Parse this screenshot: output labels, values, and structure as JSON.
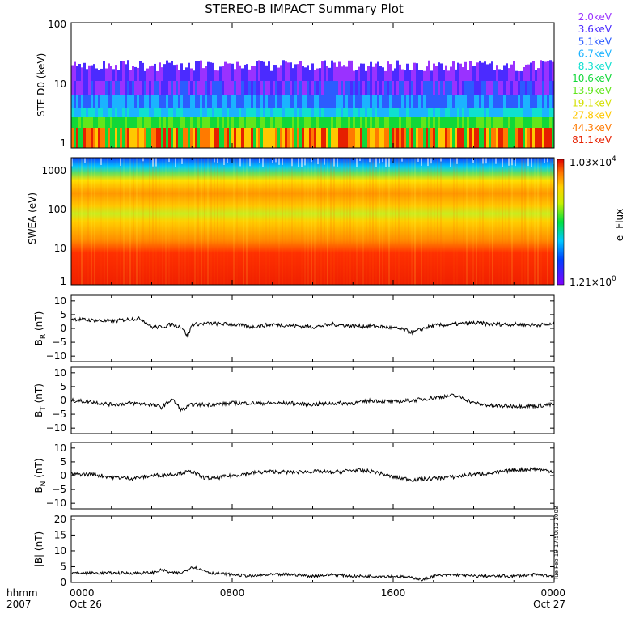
{
  "title": "STEREO-B IMPACT Summary Plot",
  "footer": {
    "row_label_top": "hhmm",
    "row_label_bottom": "2007",
    "ticks": [
      {
        "time": "0000",
        "date": "Oct 26",
        "hour": 0
      },
      {
        "time": "0800",
        "date": "",
        "hour": 8
      },
      {
        "time": "1600",
        "date": "",
        "hour": 16
      },
      {
        "time": "0000",
        "date": "Oct 27",
        "hour": 24
      }
    ],
    "timestamp": "Tue Feb 19 17:50:12 2008"
  },
  "colors": {
    "trace": "#000000",
    "ste_channels": [
      "#9a32ff",
      "#4b2bff",
      "#2c5cff",
      "#1bb3ff",
      "#0fe0d0",
      "#11d838",
      "#62e61b",
      "#d4e000",
      "#ffc800",
      "#ff7a00",
      "#e62000"
    ]
  },
  "chart_data": [
    {
      "id": "ste",
      "type": "heatmap",
      "ylabel": "STE D0 (keV)",
      "yscale": "log",
      "ylim": [
        1,
        100
      ],
      "yticks": [
        "1",
        "10",
        "100"
      ],
      "channels": [
        "2.0keV",
        "3.6keV",
        "5.1keV",
        "6.7keV",
        "8.3keV",
        "10.6keV",
        "13.9keV",
        "19.1keV",
        "27.8keV",
        "44.3keV",
        "81.1keV"
      ]
    },
    {
      "id": "swea",
      "type": "heatmap",
      "ylabel": "SWEA (eV)",
      "yscale": "log",
      "ylim": [
        1,
        2000
      ],
      "yticks": [
        "1",
        "10",
        "100",
        "1000"
      ],
      "colorbar": {
        "label": "e- Flux",
        "max": "1.03×10",
        "max_exp": "4",
        "min": "1.21×10",
        "min_exp": "0"
      }
    },
    {
      "id": "br",
      "type": "line",
      "ylabel": "B",
      "sub": "R",
      "unit": "(nT)",
      "ylim": [
        -12,
        12
      ],
      "yticks": [
        "10",
        "5",
        "0",
        "−5",
        "−10"
      ],
      "x": [
        0,
        1,
        2,
        3,
        3.5,
        4,
        4.5,
        5,
        5.5,
        5.8,
        6,
        7,
        8,
        9,
        10,
        11,
        12,
        13,
        14,
        15,
        16,
        16.5,
        17,
        17.5,
        18,
        19,
        20,
        21,
        22,
        23,
        24
      ],
      "y": [
        3.5,
        3,
        2.5,
        3.5,
        3.5,
        0.5,
        0.5,
        1.5,
        0.5,
        -3,
        1.5,
        1.8,
        1.5,
        0.5,
        1.5,
        1,
        0.5,
        1.5,
        0.8,
        0.8,
        0.2,
        -0.5,
        -1.5,
        0,
        1,
        1.5,
        2,
        1.5,
        1.5,
        1.2,
        1.5
      ]
    },
    {
      "id": "bt",
      "type": "line",
      "ylabel": "B",
      "sub": "T",
      "unit": "(nT)",
      "ylim": [
        -12,
        12
      ],
      "yticks": [
        "10",
        "5",
        "0",
        "−5",
        "−10"
      ],
      "x": [
        0,
        1,
        2,
        3,
        4,
        4.5,
        5,
        5.5,
        6,
        7,
        8,
        9,
        10,
        11,
        12,
        13,
        14,
        15,
        16,
        17,
        18,
        19,
        19.5,
        20,
        21,
        22,
        23,
        24
      ],
      "y": [
        0,
        -0.5,
        -1.5,
        -1,
        -1.5,
        -2.5,
        0.5,
        -3.5,
        -1.5,
        -1.5,
        -1,
        -1,
        -1,
        -1,
        -1.5,
        -1,
        -1,
        0,
        -0.5,
        0,
        1,
        1.8,
        0.8,
        -1,
        -2,
        -2,
        -2,
        -1.5
      ]
    },
    {
      "id": "bn",
      "type": "line",
      "ylabel": "B",
      "sub": "N",
      "unit": "(nT)",
      "ylim": [
        -12,
        12
      ],
      "yticks": [
        "10",
        "5",
        "0",
        "−5",
        "−10"
      ],
      "x": [
        0,
        1,
        2,
        3,
        4,
        5,
        6,
        6.5,
        7,
        8,
        9,
        10,
        11,
        12,
        13,
        14,
        15,
        16,
        17,
        18,
        19,
        20,
        21,
        22,
        23,
        24
      ],
      "y": [
        0.5,
        0.5,
        -0.5,
        -1,
        0,
        0.5,
        1.5,
        -0.5,
        -1,
        0,
        1,
        1.5,
        1.2,
        1.5,
        1.2,
        2,
        1.5,
        -0.5,
        -1.5,
        -1,
        -0.5,
        0.5,
        1,
        2,
        2.5,
        1.5
      ]
    },
    {
      "id": "bmag",
      "type": "line",
      "ylabel": "|B| (nT)",
      "sub": "",
      "unit": "",
      "ylim": [
        0,
        21
      ],
      "yticks": [
        "20",
        "15",
        "10",
        "5",
        "0"
      ],
      "x": [
        0,
        2,
        4,
        4.5,
        5,
        5.5,
        6,
        7,
        8,
        9,
        10,
        11,
        12,
        13,
        14,
        15,
        16,
        17,
        17.5,
        18,
        19,
        20,
        21,
        22,
        23,
        24
      ],
      "y": [
        3,
        3,
        3,
        4,
        3,
        3,
        5,
        3,
        2.5,
        2,
        2.5,
        2.5,
        2,
        2.5,
        2,
        2,
        2,
        1.5,
        0.8,
        2,
        2.5,
        2,
        2,
        2,
        2.5,
        2
      ]
    }
  ]
}
